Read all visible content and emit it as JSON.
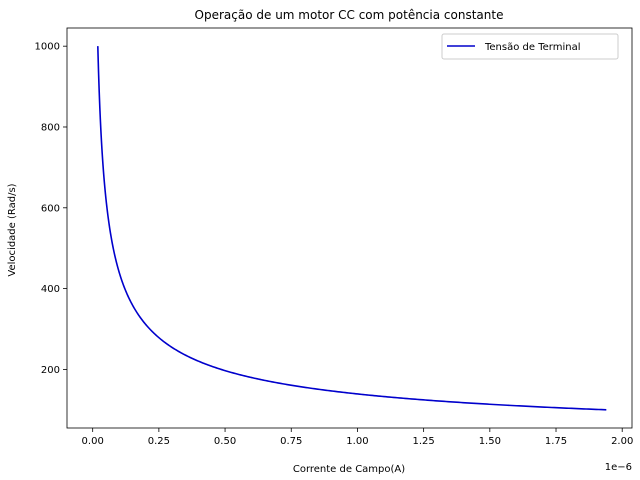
{
  "chart_data": {
    "type": "line",
    "title": "Operação de um motor CC com potência constante",
    "xlabel": "Corrente de Campo(A)",
    "ylabel": "Velocidade (Rad/s)",
    "x_offset_label": "1e−6",
    "x_tick_labels": [
      "0.00",
      "0.25",
      "0.50",
      "0.75",
      "1.00",
      "1.25",
      "1.50",
      "1.75",
      "2.00"
    ],
    "x_ticks": [
      0,
      0.25,
      0.5,
      0.75,
      1.0,
      1.25,
      1.5,
      1.75,
      2.0
    ],
    "y_tick_labels": [
      "200",
      "400",
      "600",
      "800",
      "1000"
    ],
    "y_ticks": [
      200,
      400,
      600,
      800,
      1000
    ],
    "xlim": [
      -0.097,
      2.037
    ],
    "ylim": [
      55,
      1045
    ],
    "legend_position": "upper-right",
    "grid": false,
    "series": [
      {
        "name": "Tensão de Terminal",
        "color": "#0000cc",
        "model": "y = k / sqrt(x)",
        "k": 139.3,
        "x_range": [
          0.0194,
          1.94
        ],
        "y_range": [
          100,
          1000
        ]
      }
    ]
  }
}
